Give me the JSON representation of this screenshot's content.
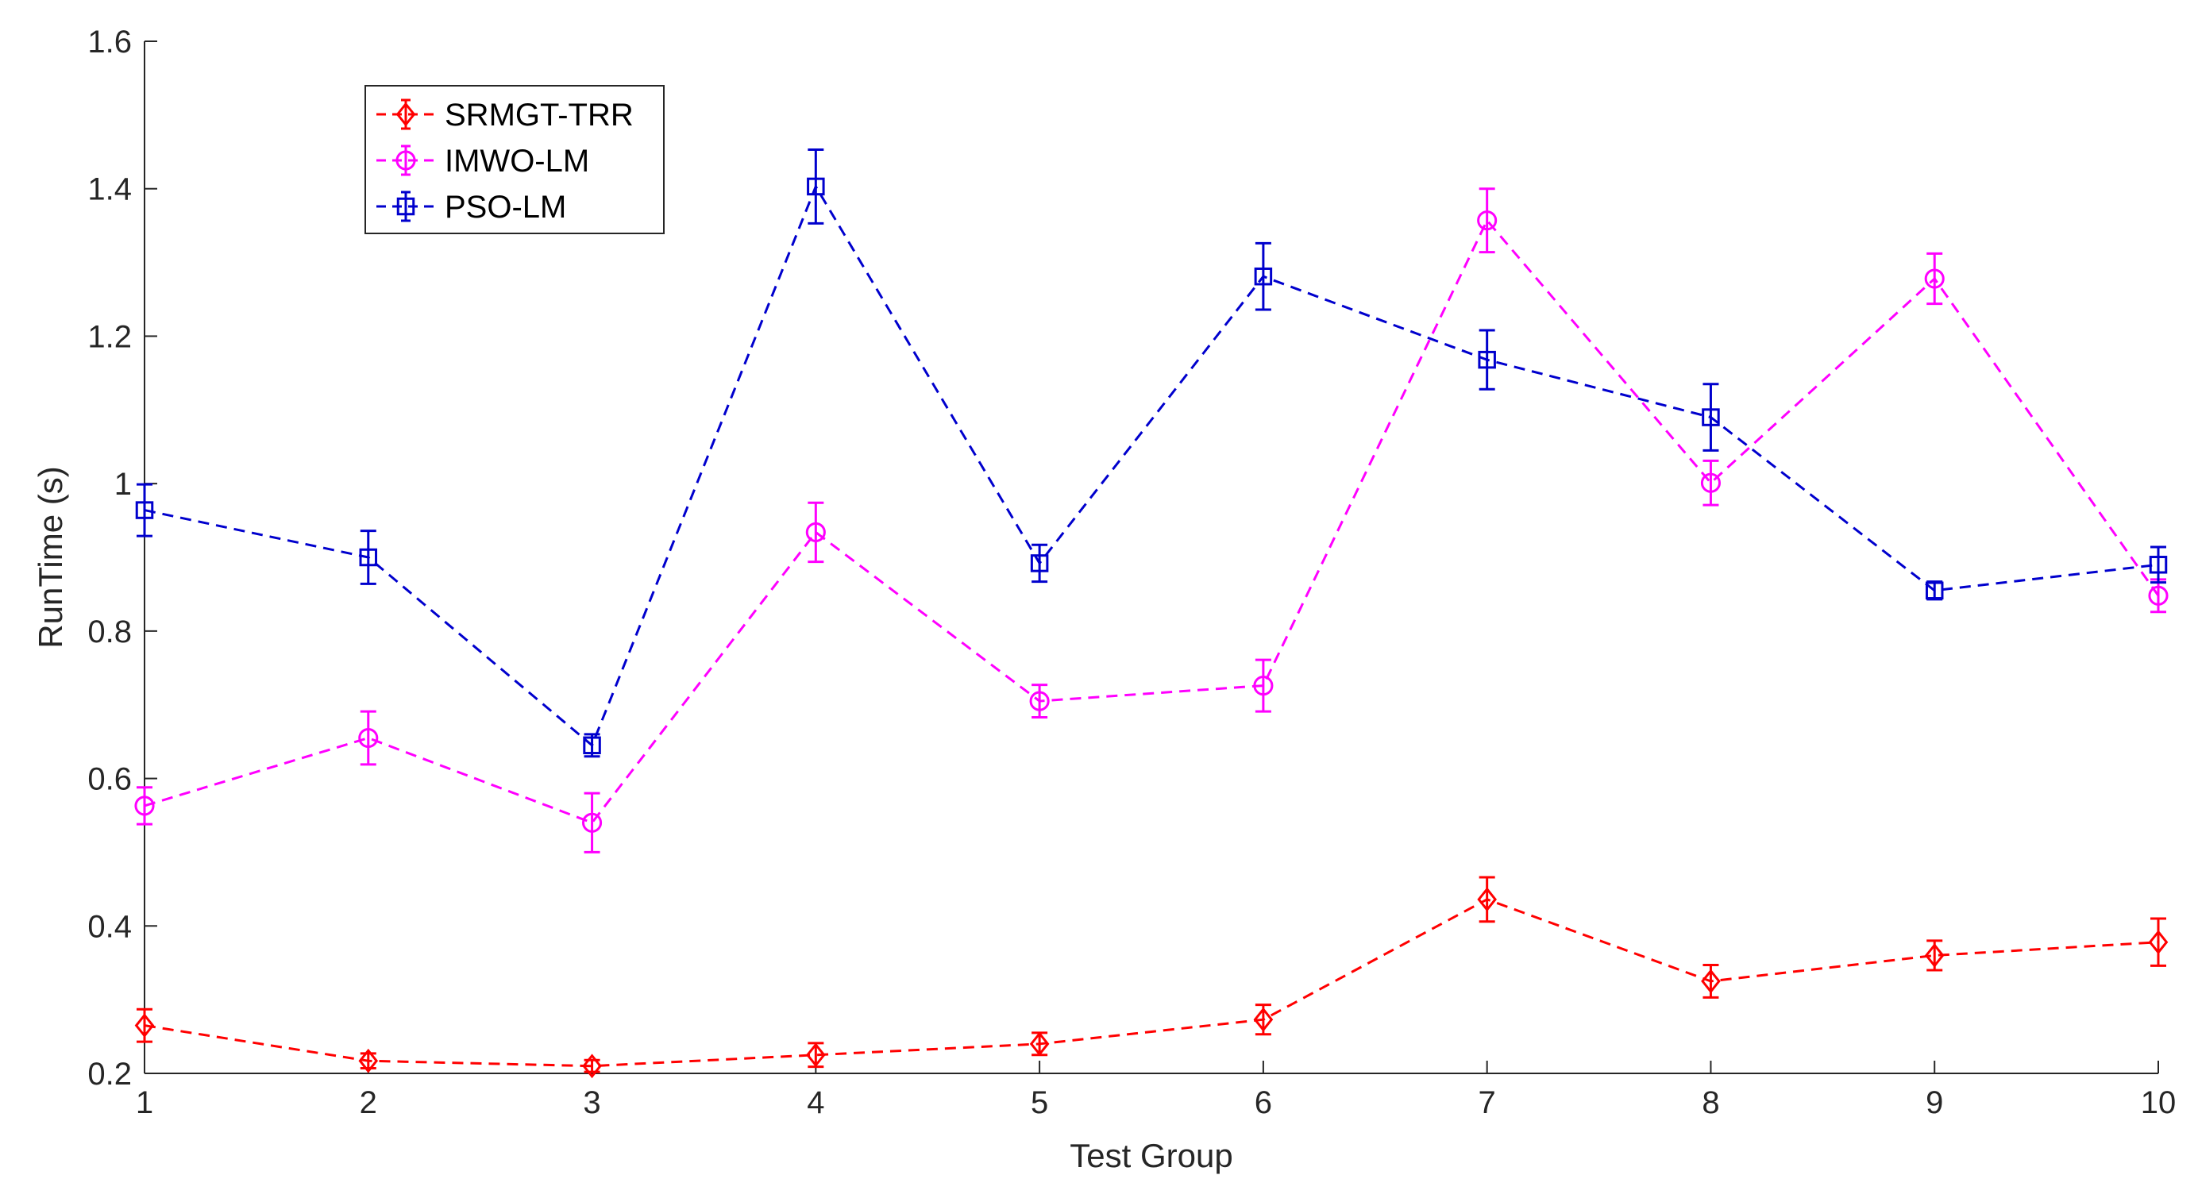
{
  "chart_data": {
    "type": "line",
    "title": "",
    "xlabel": "Test Group",
    "ylabel": "RunTime (s)",
    "xlim": [
      1,
      10
    ],
    "ylim": [
      0.2,
      1.6
    ],
    "x": [
      1,
      2,
      3,
      4,
      5,
      6,
      7,
      8,
      9,
      10
    ],
    "x_ticks": [
      "1",
      "2",
      "3",
      "4",
      "5",
      "6",
      "7",
      "8",
      "9",
      "10"
    ],
    "y_ticks": [
      "0.2",
      "0.4",
      "0.6",
      "0.8",
      "1",
      "1.2",
      "1.4",
      "1.6"
    ],
    "y_tick_values": [
      0.2,
      0.4,
      0.6,
      0.8,
      1.0,
      1.2,
      1.4,
      1.6
    ],
    "grid": false,
    "legend_position": "top-left",
    "series": [
      {
        "name": "SRMGT-TRR",
        "color": "#ff0000",
        "marker": "diamond",
        "line_style": "dashed",
        "values": [
          0.265,
          0.217,
          0.21,
          0.225,
          0.24,
          0.273,
          0.436,
          0.325,
          0.36,
          0.378
        ],
        "errors": [
          0.022,
          0.01,
          0.008,
          0.016,
          0.015,
          0.02,
          0.03,
          0.022,
          0.02,
          0.032
        ]
      },
      {
        "name": "IMWO-LM",
        "color": "#ff00ff",
        "marker": "circle",
        "line_style": "dashed",
        "values": [
          0.563,
          0.655,
          0.54,
          0.934,
          0.705,
          0.726,
          1.357,
          1.001,
          1.278,
          0.848
        ],
        "errors": [
          0.025,
          0.036,
          0.04,
          0.04,
          0.022,
          0.035,
          0.043,
          0.03,
          0.034,
          0.022
        ]
      },
      {
        "name": "PSO-LM",
        "color": "#0000cd",
        "marker": "square",
        "line_style": "dashed",
        "values": [
          0.964,
          0.9,
          0.645,
          1.403,
          0.892,
          1.281,
          1.168,
          1.09,
          0.855,
          0.89
        ],
        "errors": [
          0.035,
          0.036,
          0.015,
          0.05,
          0.025,
          0.045,
          0.04,
          0.045,
          0.012,
          0.024
        ]
      }
    ]
  }
}
